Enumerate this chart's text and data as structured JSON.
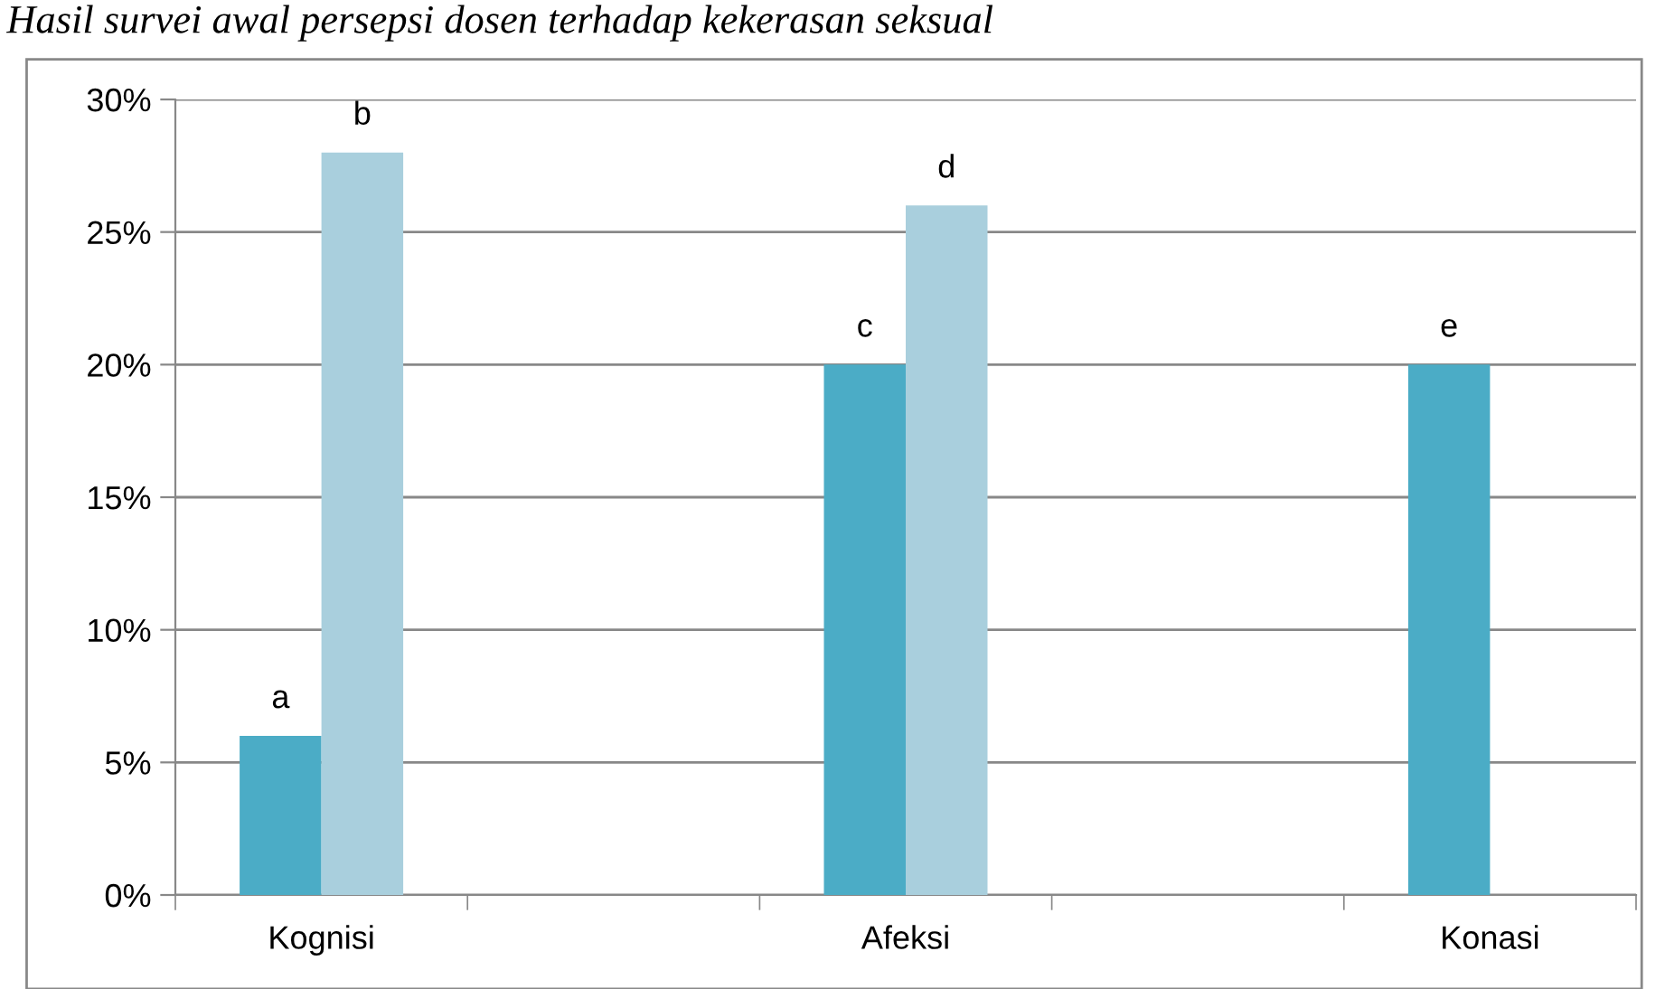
{
  "chart_data": {
    "type": "bar",
    "title": "Hasil survei awal persepsi dosen terhadap kekerasan seksual",
    "categories": [
      "Kognisi",
      null,
      "Afeksi",
      null,
      "Konasi"
    ],
    "series": [
      {
        "color": "#4bacc6",
        "values": [
          6,
          null,
          20,
          null,
          20
        ],
        "value_labels": [
          "a",
          null,
          "c",
          null,
          "e"
        ]
      },
      {
        "color": "#a9cfdd",
        "values": [
          28,
          null,
          26,
          null,
          null
        ],
        "value_labels": [
          "b",
          null,
          "d",
          null,
          null
        ]
      }
    ],
    "ylim": [
      0,
      30
    ],
    "yticks": [
      {
        "value": 0,
        "label": "0%"
      },
      {
        "value": 5,
        "label": "5%"
      },
      {
        "value": 10,
        "label": "10%"
      },
      {
        "value": 15,
        "label": "15%"
      },
      {
        "value": 20,
        "label": "20%"
      },
      {
        "value": 25,
        "label": "25%"
      },
      {
        "value": 30,
        "label": "30%"
      }
    ],
    "grid": "y",
    "legend": false
  }
}
